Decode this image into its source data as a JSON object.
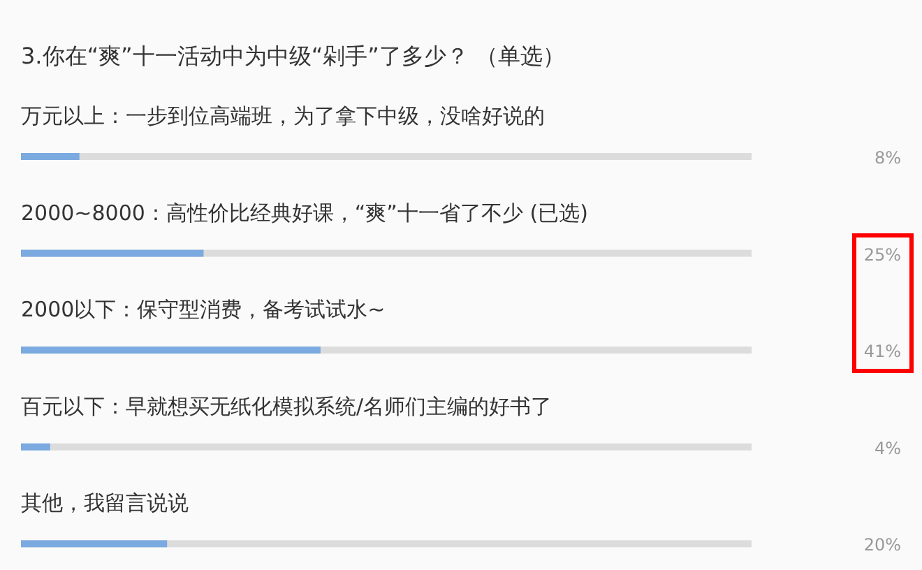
{
  "chart_data": {
    "type": "bar",
    "orientation": "horizontal",
    "title": "3.你在“爽”十一活动中为中级“剁手”了多少？ （单选）",
    "categories": [
      "万元以上：一步到位高端班，为了拿下中级，没啥好说的",
      "2000~8000：高性价比经典好课，“爽”十一省了不少 (已选)",
      "2000以下：保守型消费，备考试试水~",
      "百元以下：早就想买无纸化模拟系统/名师们主编的好书了",
      "其他，我留言说说"
    ],
    "values": [
      8,
      25,
      41,
      4,
      20
    ],
    "value_labels": [
      "8%",
      "25%",
      "41%",
      "4%",
      "20%"
    ],
    "color": "#7aaae0",
    "xlim": [
      0,
      100
    ],
    "tick_labels": "y"
  }
}
